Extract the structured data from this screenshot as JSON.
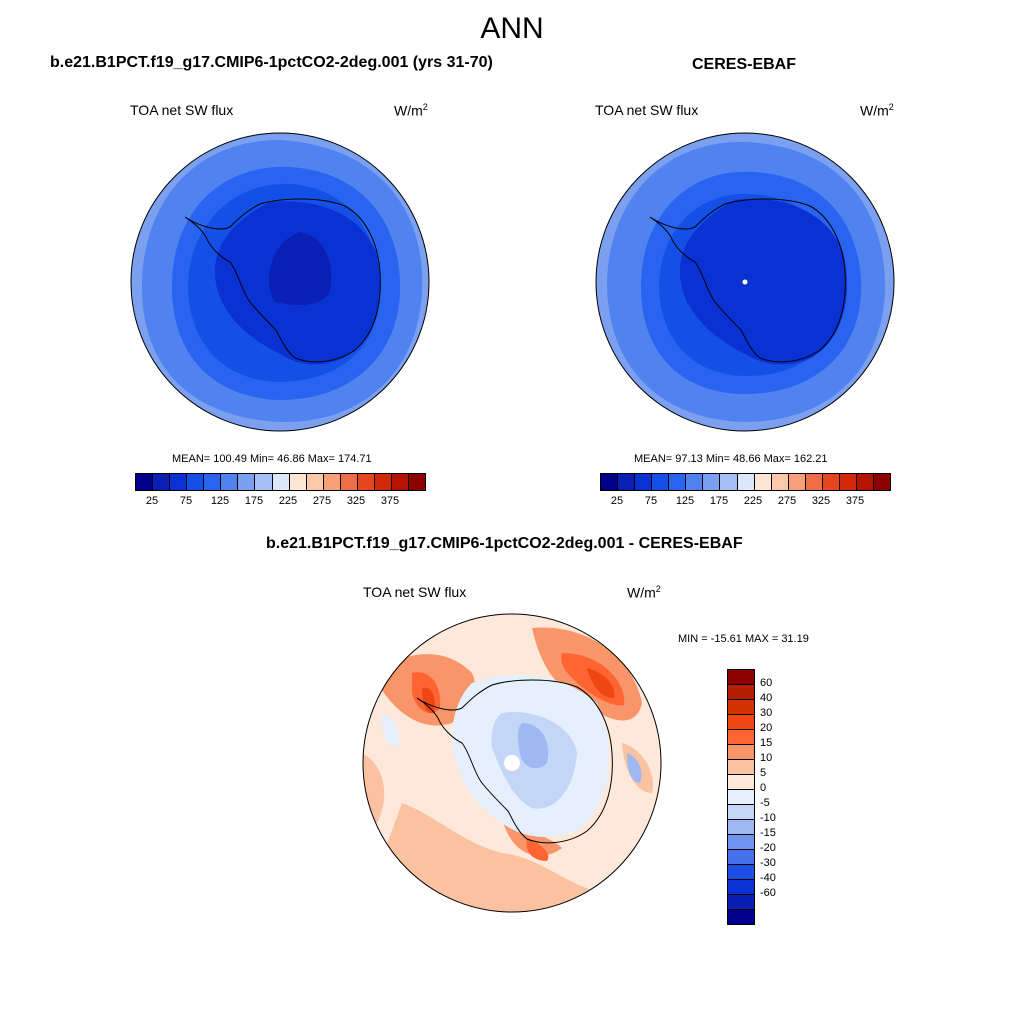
{
  "title": "ANN",
  "panels": [
    {
      "title": "b.e21.B1PCT.f19_g17.CMIP6-1pctCO2-2deg.001 (yrs 31-70)",
      "variable": "TOA net SW flux",
      "units": "W/m",
      "units_sup": "2",
      "stats": "MEAN= 100.49  Min=  46.86  Max= 174.71"
    },
    {
      "title": "CERES-EBAF",
      "variable": "TOA net SW flux",
      "units": "W/m",
      "units_sup": "2",
      "stats": "MEAN=  97.13  Min=  48.66  Max= 162.21"
    }
  ],
  "colorbar_abs": {
    "colors": [
      "#00008c",
      "#0a1fb4",
      "#0a32d2",
      "#1450e6",
      "#2864f0",
      "#5082f0",
      "#7ba0f0",
      "#a5c0f5",
      "#dce8fa",
      "#fde6d4",
      "#fbc8a8",
      "#f8a078",
      "#f06e46",
      "#e6461e",
      "#d2280a",
      "#b41400",
      "#8c0000"
    ],
    "labels": [
      "25",
      "75",
      "125",
      "175",
      "225",
      "275",
      "325",
      "375"
    ]
  },
  "diff": {
    "title": "b.e21.B1PCT.f19_g17.CMIP6-1pctCO2-2deg.001 - CERES-EBAF",
    "variable": "TOA net SW flux",
    "units": "W/m",
    "units_sup": "2",
    "minmax": "MIN = -15.61 MAX =  31.19"
  },
  "colorbar_diff": {
    "colors": [
      "#8c0000",
      "#b41e00",
      "#d23200",
      "#f04614",
      "#ff6432",
      "#f8966a",
      "#fbc2a2",
      "#fde8da",
      "#e6f0fc",
      "#c4d6f8",
      "#9eb8f4",
      "#6e94f0",
      "#4670eb",
      "#1e50e6",
      "#0a32d2",
      "#0a1eb4",
      "#00008c"
    ],
    "labels": [
      "60",
      "40",
      "30",
      "20",
      "15",
      "10",
      "5",
      "0",
      "-5",
      "-10",
      "-15",
      "-20",
      "-30",
      "-40",
      "-60"
    ]
  }
}
